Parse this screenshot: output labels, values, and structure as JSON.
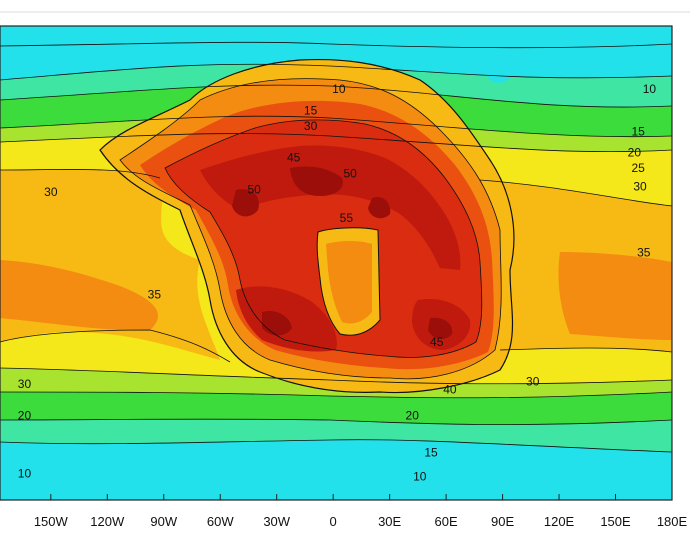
{
  "map": {
    "x_tick_labels": [
      "150W",
      "120W",
      "90W",
      "60W",
      "30W",
      "0",
      "30E",
      "60E",
      "90E",
      "120E",
      "150E",
      "180E"
    ],
    "contour_labels": [
      {
        "text": "10",
        "lon": 3,
        "lat": 66
      },
      {
        "text": "10",
        "lon": 168,
        "lat": 66
      },
      {
        "text": "15",
        "lon": -12,
        "lat": 58
      },
      {
        "text": "15",
        "lon": 162,
        "lat": 50
      },
      {
        "text": "20",
        "lon": 160,
        "lat": 42
      },
      {
        "text": "25",
        "lon": 162,
        "lat": 36
      },
      {
        "text": "30",
        "lon": -12,
        "lat": 52
      },
      {
        "text": "30",
        "lon": 163,
        "lat": 29
      },
      {
        "text": "30",
        "lon": -150,
        "lat": 27
      },
      {
        "text": "35",
        "lon": -95,
        "lat": -12
      },
      {
        "text": "35",
        "lon": 165,
        "lat": 4
      },
      {
        "text": "45",
        "lon": -21,
        "lat": 40
      },
      {
        "text": "50",
        "lon": -42,
        "lat": 28
      },
      {
        "text": "50",
        "lon": 9,
        "lat": 34
      },
      {
        "text": "55",
        "lon": 7,
        "lat": 17
      },
      {
        "text": "45",
        "lon": 55,
        "lat": -30
      },
      {
        "text": "40",
        "lon": 62,
        "lat": -48
      },
      {
        "text": "30",
        "lon": 106,
        "lat": -45
      },
      {
        "text": "20",
        "lon": 42,
        "lat": -58
      },
      {
        "text": "15",
        "lon": 52,
        "lat": -72
      },
      {
        "text": "10",
        "lon": 46,
        "lat": -81
      },
      {
        "text": "10",
        "lon": -164,
        "lat": -80
      },
      {
        "text": "20",
        "lon": -164,
        "lat": -58
      },
      {
        "text": "30",
        "lon": -164,
        "lat": -46
      }
    ],
    "colors": {
      "t10": "#22e1ea",
      "t15": "#3fe5a3",
      "t20": "#3bdc3b",
      "t25": "#a7e32f",
      "t30": "#f4e81a",
      "t35": "#f7ba14",
      "t40": "#f48c12",
      "t45": "#ea5010",
      "t50": "#d92c10",
      "t55": "#bf1a0d",
      "t60": "#9c0e09"
    }
  }
}
